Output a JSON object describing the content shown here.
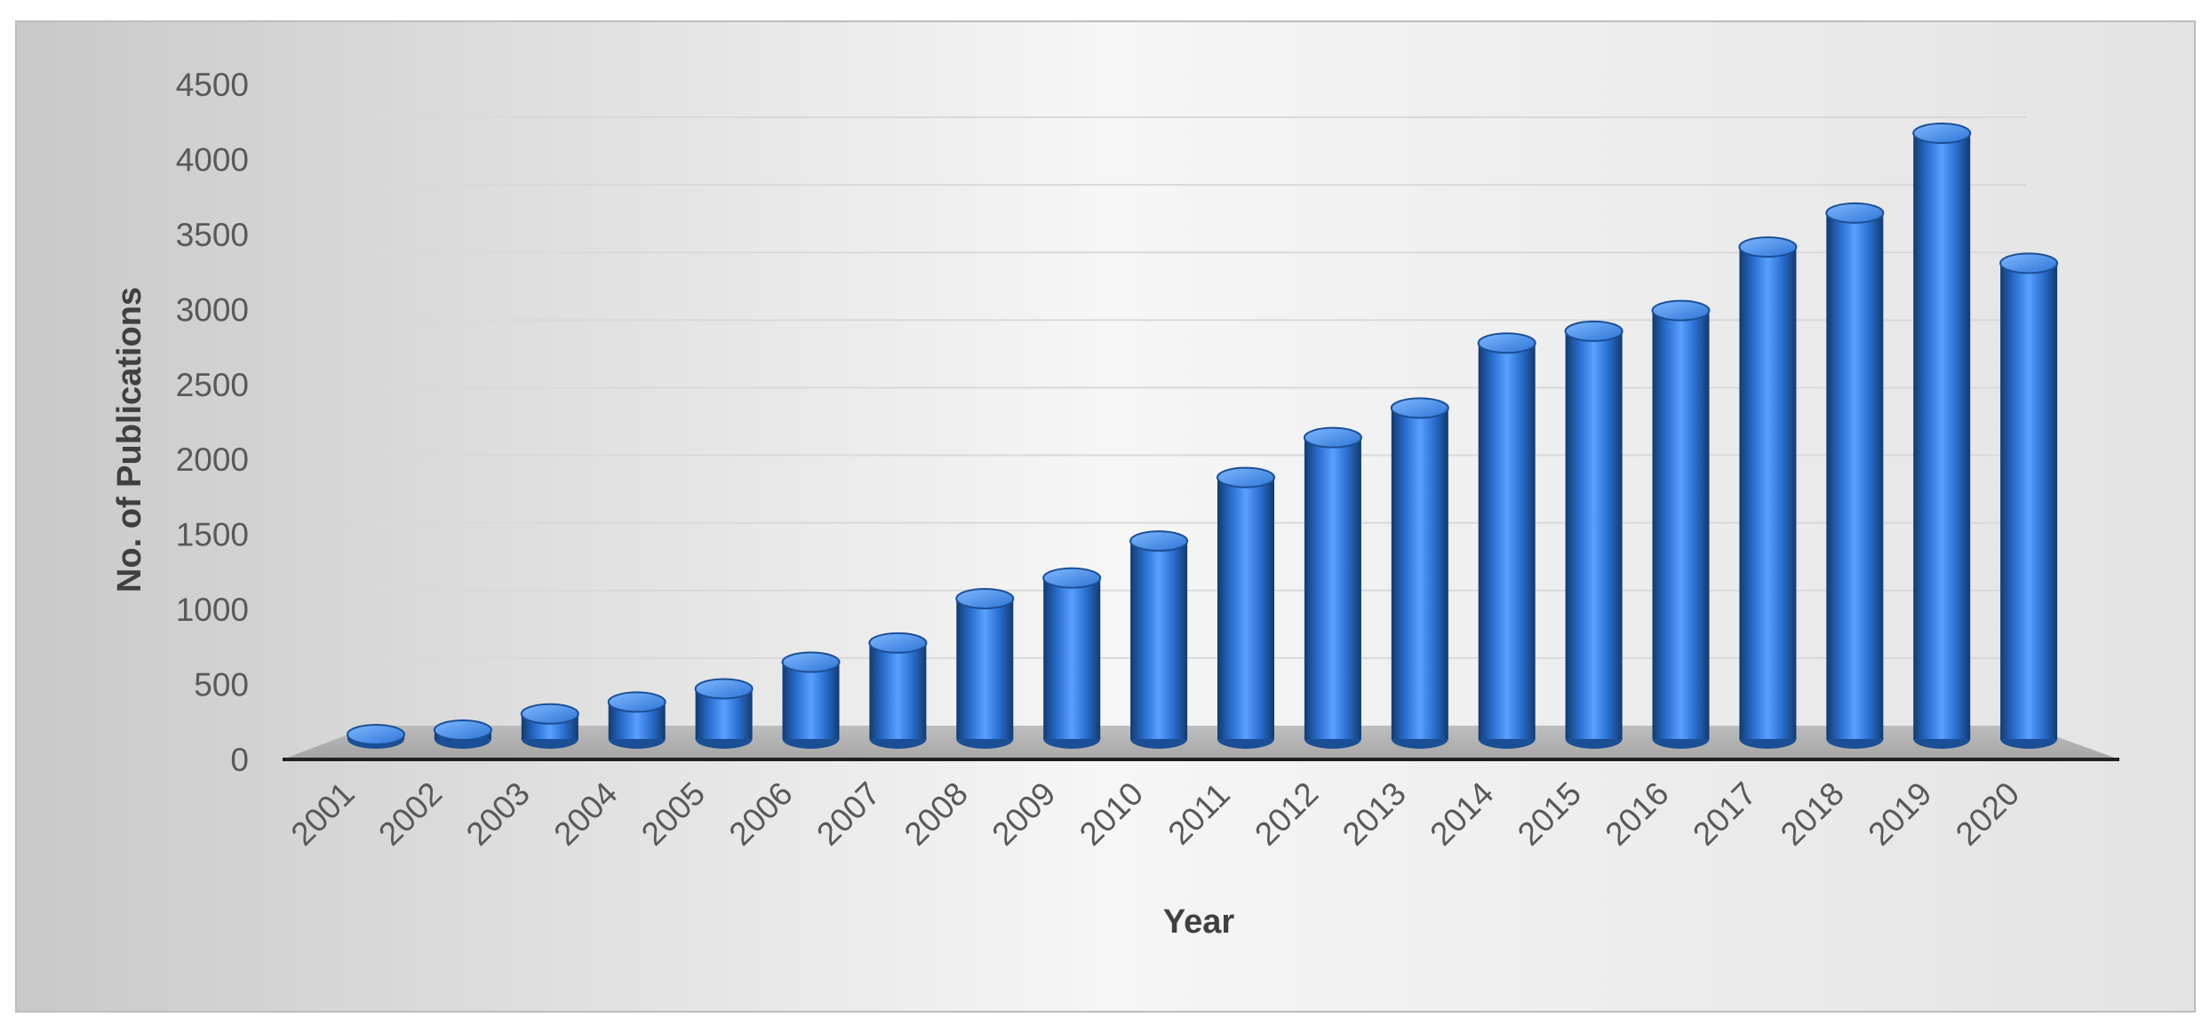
{
  "chart_data": {
    "type": "bar",
    "style": "3d-cylinder",
    "xlabel": "Year",
    "ylabel": "No. of Publications",
    "ylim": [
      0,
      4500
    ],
    "yticks": [
      0,
      500,
      1000,
      1500,
      2000,
      2500,
      3000,
      3500,
      4000,
      4500
    ],
    "grid": true,
    "legend": "none",
    "bar_color": "#2e75d6",
    "categories": [
      "2001",
      "2002",
      "2003",
      "2004",
      "2005",
      "2006",
      "2007",
      "2008",
      "2009",
      "2010",
      "2011",
      "2012",
      "2013",
      "2014",
      "2015",
      "2016",
      "2017",
      "2018",
      "2019",
      "2020"
    ],
    "values": [
      30,
      60,
      170,
      250,
      340,
      520,
      650,
      950,
      1090,
      1340,
      1770,
      2040,
      2240,
      2680,
      2760,
      2900,
      3330,
      3560,
      4100,
      3220
    ]
  }
}
